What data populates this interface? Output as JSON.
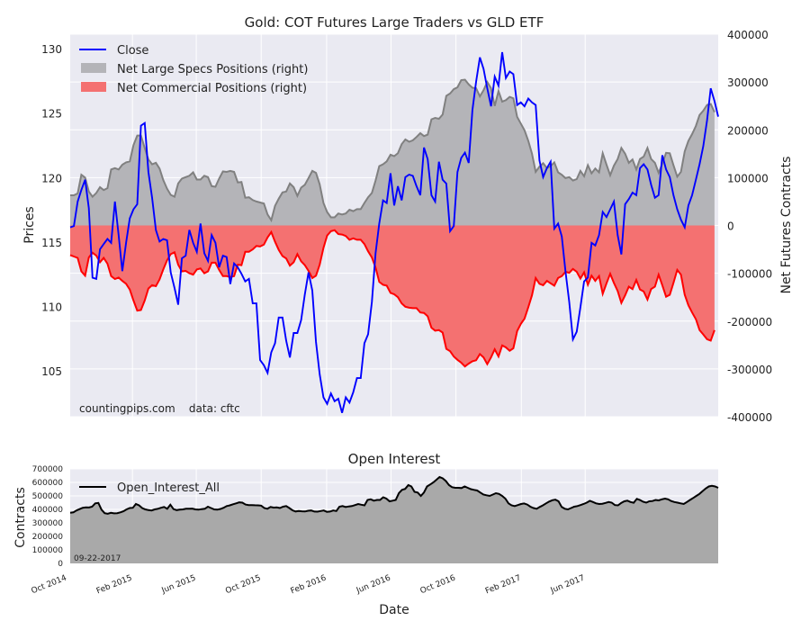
{
  "chart_data": [
    {
      "type": "line",
      "title": "Gold: COT Futures Large Traders vs GLD ETF",
      "ylabel": "Prices",
      "y2label": "Net Futures Contracts",
      "ylim": [
        101.5,
        131.2
      ],
      "y2lim": [
        -400000,
        400000
      ],
      "yticks": [
        105,
        110,
        115,
        120,
        125,
        130
      ],
      "y2ticks": [
        -400000,
        -300000,
        -200000,
        -100000,
        0,
        100000,
        200000,
        300000,
        400000
      ],
      "note": "countingpips.com    data: cftc",
      "legend": {
        "position": "top-left",
        "entries": [
          "Close",
          "Net Large Specs Positions (right)",
          "Net Commercial Positions (right)"
        ]
      },
      "colors": {
        "close": "#0000ff",
        "specs_fill": "#b4b4b8",
        "specs_line": "#808080",
        "comm_fill": "#f47171",
        "comm_line": "#ff0000"
      },
      "x_start": "2014-10-07",
      "x_step_days": 7,
      "series": [
        {
          "name": "Close",
          "axis": "left",
          "values": [
            116.2,
            116.3,
            118.2,
            119.1,
            119.9,
            117.7,
            112.3,
            112.2,
            114.5,
            114.9,
            115.3,
            115.0,
            118.2,
            115.6,
            112.8,
            115.0,
            116.9,
            117.6,
            118.0,
            124.1,
            124.3,
            120.5,
            118.5,
            116.0,
            115.1,
            115.3,
            115.2,
            112.7,
            111.5,
            110.2,
            113.8,
            114.0,
            116.0,
            115.0,
            114.3,
            116.5,
            114.2,
            113.6,
            115.6,
            115.0,
            113.1,
            114.0,
            113.9,
            111.8,
            113.4,
            113.1,
            112.6,
            112.0,
            112.2,
            110.3,
            110.3,
            105.9,
            105.5,
            104.9,
            106.5,
            107.2,
            109.2,
            109.2,
            107.4,
            106.1,
            108.0,
            108.0,
            109.0,
            111.0,
            112.7,
            111.3,
            107.3,
            104.8,
            103.0,
            102.5,
            103.3,
            102.7,
            102.9,
            101.8,
            103.0,
            102.6,
            103.4,
            104.5,
            104.5,
            107.2,
            107.9,
            110.4,
            114.2,
            116.5,
            118.3,
            118.1,
            120.4,
            117.9,
            119.4,
            118.3,
            120.1,
            120.3,
            120.2,
            119.4,
            118.7,
            122.4,
            121.5,
            118.7,
            118.2,
            121.3,
            119.9,
            119.6,
            115.9,
            116.3,
            120.5,
            121.6,
            122.0,
            121.2,
            125.3,
            127.5,
            129.4,
            128.5,
            127.0,
            125.6,
            127.9,
            127.2,
            129.8,
            127.8,
            128.3,
            128.1,
            125.7,
            125.9,
            125.6,
            126.2,
            125.9,
            125.7,
            121.4,
            120.1,
            120.8,
            121.3,
            116.1,
            116.5,
            115.5,
            112.8,
            110.4,
            107.5,
            108.1,
            110.0,
            112.0,
            112.3,
            115.0,
            114.8,
            115.6,
            117.4,
            117.0,
            117.6,
            118.2,
            115.6,
            114.1,
            118.0,
            118.4,
            118.9,
            118.7,
            120.8,
            121.1,
            120.7,
            119.5,
            118.5,
            118.7,
            121.8,
            120.7,
            120.1,
            118.7,
            117.6,
            116.8,
            116.2,
            117.9,
            118.7,
            119.9,
            121.1,
            122.5,
            124.5,
            127.0,
            126.0,
            124.8
          ]
        },
        {
          "name": "Net Large Specs Positions (right)",
          "axis": "right",
          "values": [
            63000,
            63000,
            67000,
            106000,
            100000,
            71000,
            60000,
            68000,
            80000,
            74000,
            78000,
            117000,
            120000,
            117000,
            127000,
            132000,
            134000,
            168000,
            188000,
            188000,
            162000,
            138000,
            128000,
            131000,
            119000,
            95000,
            77000,
            64000,
            60000,
            88000,
            98000,
            101000,
            104000,
            111000,
            96000,
            96000,
            104000,
            101000,
            82000,
            81000,
            98000,
            113000,
            112000,
            114000,
            112000,
            90000,
            91000,
            58000,
            59000,
            53000,
            50000,
            48000,
            46000,
            23000,
            11000,
            41000,
            56000,
            69000,
            71000,
            88000,
            80000,
            62000,
            79000,
            85000,
            99000,
            114000,
            110000,
            86000,
            47000,
            28000,
            17000,
            17000,
            25000,
            23000,
            25000,
            33000,
            30000,
            34000,
            34000,
            47000,
            59000,
            68000,
            94000,
            124000,
            128000,
            134000,
            148000,
            145000,
            151000,
            170000,
            180000,
            175000,
            178000,
            185000,
            193000,
            187000,
            190000,
            222000,
            225000,
            223000,
            232000,
            271000,
            276000,
            285000,
            289000,
            304000,
            305000,
            295000,
            288000,
            287000,
            270000,
            283000,
            300000,
            287000,
            250000,
            281000,
            259000,
            262000,
            269000,
            266000,
            227000,
            213000,
            199000,
            177000,
            150000,
            112000,
            123000,
            130000,
            120000,
            124000,
            132000,
            111000,
            106000,
            99000,
            101000,
            94000,
            97000,
            114000,
            103000,
            126000,
            109000,
            119000,
            111000,
            151000,
            127000,
            105000,
            125000,
            139000,
            162000,
            150000,
            131000,
            138000,
            117000,
            139000,
            144000,
            162000,
            139000,
            131000,
            110000,
            129000,
            152000,
            151000,
            126000,
            102000,
            112000,
            155000,
            177000,
            191000,
            208000,
            231000,
            240000,
            252000,
            254000,
            237000
          ]
        },
        {
          "name": "Net Commercial Positions (right)",
          "axis": "right",
          "values": [
            -62000,
            -65000,
            -68000,
            -96000,
            -105000,
            -67000,
            -57000,
            -63000,
            -77000,
            -68000,
            -80000,
            -106000,
            -112000,
            -109000,
            -116000,
            -122000,
            -134000,
            -157000,
            -178000,
            -177000,
            -157000,
            -132000,
            -125000,
            -127000,
            -113000,
            -92000,
            -73000,
            -60000,
            -56000,
            -82000,
            -96000,
            -95000,
            -100000,
            -103000,
            -92000,
            -90000,
            -100000,
            -96000,
            -78000,
            -78000,
            -93000,
            -106000,
            -106000,
            -108000,
            -106000,
            -82000,
            -83000,
            -55000,
            -55000,
            -50000,
            -43000,
            -44000,
            -40000,
            -25000,
            -14000,
            -34000,
            -51000,
            -64000,
            -69000,
            -84000,
            -77000,
            -60000,
            -75000,
            -83000,
            -95000,
            -110000,
            -105000,
            -82000,
            -47000,
            -21000,
            -12000,
            -10000,
            -18000,
            -19000,
            -22000,
            -30000,
            -27000,
            -30000,
            -30000,
            -39000,
            -54000,
            -67000,
            -88000,
            -118000,
            -124000,
            -126000,
            -141000,
            -144000,
            -150000,
            -163000,
            -170000,
            -172000,
            -173000,
            -173000,
            -182000,
            -183000,
            -190000,
            -214000,
            -220000,
            -219000,
            -224000,
            -258000,
            -263000,
            -274000,
            -281000,
            -287000,
            -295000,
            -289000,
            -284000,
            -282000,
            -269000,
            -276000,
            -290000,
            -276000,
            -259000,
            -274000,
            -251000,
            -255000,
            -262000,
            -257000,
            -221000,
            -206000,
            -195000,
            -171000,
            -146000,
            -110000,
            -122000,
            -125000,
            -116000,
            -121000,
            -126000,
            -110000,
            -106000,
            -97000,
            -99000,
            -91000,
            -97000,
            -111000,
            -98000,
            -124000,
            -105000,
            -116000,
            -106000,
            -143000,
            -121000,
            -101000,
            -120000,
            -137000,
            -162000,
            -146000,
            -128000,
            -133000,
            -114000,
            -134000,
            -138000,
            -155000,
            -133000,
            -128000,
            -103000,
            -125000,
            -149000,
            -145000,
            -120000,
            -93000,
            -103000,
            -145000,
            -167000,
            -182000,
            -196000,
            -219000,
            -228000,
            -238000,
            -241000,
            -219000
          ]
        }
      ]
    },
    {
      "type": "area",
      "title": "Open Interest",
      "xlabel": "Date",
      "ylabel": "Contracts",
      "ylim": [
        0,
        700000
      ],
      "yticks": [
        0,
        100000,
        200000,
        300000,
        400000,
        500000,
        600000,
        700000
      ],
      "xtick_labels": [
        "Oct 2014",
        "Feb 2015",
        "Jun 2015",
        "Oct 2015",
        "Feb 2016",
        "Jun 2016",
        "Oct 2016",
        "Feb 2017",
        "Jun 2017"
      ],
      "xtick_dates": [
        "2014-10-01",
        "2015-02-01",
        "2015-06-01",
        "2015-10-01",
        "2016-02-01",
        "2016-06-01",
        "2016-10-01",
        "2017-02-01",
        "2017-06-01"
      ],
      "date_note": "09-22-2017",
      "legend": {
        "position": "top-left",
        "entries": [
          "Open_Interest_All"
        ]
      },
      "colors": {
        "line": "#000000",
        "fill": "#a9a9a9"
      },
      "series": [
        {
          "name": "Open_Interest_All",
          "values": [
            375000,
            378000,
            392000,
            402000,
            412000,
            415000,
            414000,
            420000,
            445000,
            448000,
            398000,
            372000,
            368000,
            375000,
            371000,
            372000,
            378000,
            386000,
            400000,
            410000,
            412000,
            440000,
            430000,
            410000,
            400000,
            395000,
            392000,
            400000,
            405000,
            412000,
            418000,
            405000,
            435000,
            402000,
            395000,
            398000,
            400000,
            405000,
            405000,
            406000,
            400000,
            398000,
            402000,
            405000,
            420000,
            410000,
            400000,
            398000,
            403000,
            412000,
            425000,
            430000,
            438000,
            445000,
            452000,
            450000,
            436000,
            432000,
            432000,
            431000,
            430000,
            428000,
            410000,
            405000,
            418000,
            413000,
            415000,
            410000,
            420000,
            425000,
            410000,
            393000,
            385000,
            388000,
            386000,
            385000,
            390000,
            392000,
            384000,
            383000,
            388000,
            392000,
            382000,
            384000,
            392000,
            388000,
            420000,
            425000,
            418000,
            422000,
            425000,
            432000,
            440000,
            435000,
            430000,
            470000,
            475000,
            465000,
            470000,
            470000,
            490000,
            480000,
            460000,
            465000,
            470000,
            520000,
            545000,
            552000,
            580000,
            570000,
            530000,
            525000,
            500000,
            525000,
            570000,
            585000,
            600000,
            620000,
            640000,
            630000,
            610000,
            580000,
            565000,
            560000,
            560000,
            558000,
            570000,
            560000,
            550000,
            545000,
            540000,
            525000,
            510000,
            505000,
            500000,
            510000,
            520000,
            515000,
            500000,
            480000,
            445000,
            430000,
            425000,
            432000,
            440000,
            444000,
            436000,
            420000,
            410000,
            405000,
            418000,
            430000,
            445000,
            458000,
            468000,
            472000,
            460000,
            418000,
            405000,
            400000,
            410000,
            420000,
            425000,
            432000,
            440000,
            450000,
            463000,
            455000,
            445000,
            440000,
            442000,
            448000,
            455000,
            450000,
            432000,
            430000,
            448000,
            460000,
            465000,
            455000,
            449000,
            478000,
            470000,
            457000,
            450000,
            460000,
            462000,
            470000,
            467000,
            475000,
            480000,
            475000,
            462000,
            455000,
            450000,
            445000,
            440000,
            455000,
            470000,
            485000,
            500000,
            515000,
            535000,
            555000,
            570000,
            575000,
            570000,
            560000
          ]
        }
      ]
    }
  ]
}
